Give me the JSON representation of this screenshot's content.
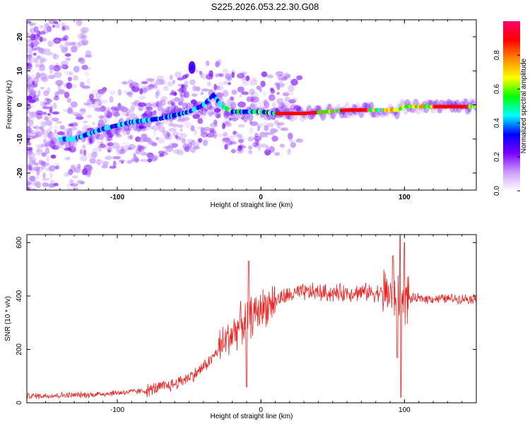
{
  "figure": {
    "title": "S225.2026.053.22.30.G08"
  },
  "chart_data": [
    {
      "type": "heatmap",
      "name": "spectrogram",
      "xlabel": "Height of straight line (km)",
      "ylabel": "Frequency (Hz)",
      "xlim": [
        -163,
        150
      ],
      "ylim": [
        -25,
        25
      ],
      "x_ticks": [
        -100,
        0,
        100
      ],
      "y_ticks": [
        -20,
        -10,
        0,
        10,
        20
      ],
      "x_tick_labels": [
        "-100",
        "0",
        "100"
      ],
      "y_tick_labels": [
        "-20",
        "-10",
        "0",
        "10",
        "20"
      ],
      "colorbar": {
        "label": "Normalized spectral amplitude",
        "range": [
          0,
          1
        ],
        "ticks": [
          0,
          0.2,
          0.4,
          0.6,
          0.8
        ],
        "tick_labels": [
          "0.0",
          "0.2",
          "0.4",
          "0.6",
          "0.8"
        ],
        "colors": [
          "#ffffff",
          "#cc99ff",
          "#7700ff",
          "#0000ff",
          "#00ffff",
          "#00ff00",
          "#ffff00",
          "#ff8800",
          "#ff0000",
          "#ff0066"
        ]
      },
      "ridge": {
        "x": [
          -130,
          -110,
          -90,
          -70,
          -50,
          -40,
          -33,
          -28,
          -20,
          -10,
          0,
          10,
          30,
          45,
          60,
          80,
          95,
          100,
          120,
          150
        ],
        "y": [
          -10,
          -7,
          -5,
          -4,
          -2,
          0,
          3,
          0,
          -2,
          -2,
          -2,
          -2.5,
          -2.5,
          -2,
          -1.5,
          -1.5,
          -1.5,
          -0.5,
          -0.5,
          -0.5
        ]
      },
      "blob": {
        "x": -48,
        "y": 11
      }
    },
    {
      "type": "line",
      "name": "snr",
      "xlabel": "Height of straight line (km)",
      "ylabel": "SNR (10 * v/v)",
      "xlim": [
        -163,
        150
      ],
      "ylim": [
        0,
        630
      ],
      "x_ticks": [
        -100,
        0,
        100
      ],
      "y_ticks": [
        0,
        200,
        400,
        600
      ],
      "x_tick_labels": [
        "-100",
        "0",
        "100"
      ],
      "y_tick_labels": [
        "0",
        "200",
        "400",
        "600"
      ],
      "color": "#ee2222",
      "trend": {
        "x": [
          -163,
          -120,
          -80,
          -60,
          -45,
          -35,
          -25,
          -15,
          -5,
          5,
          15,
          25,
          35,
          50,
          70,
          90,
          98,
          105,
          130,
          150
        ],
        "y": [
          25,
          30,
          45,
          70,
          110,
          160,
          230,
          290,
          330,
          370,
          395,
          410,
          415,
          410,
          415,
          410,
          390,
          390,
          390,
          390
        ]
      },
      "spikes": [
        {
          "x": -8.5,
          "y": 530
        },
        {
          "x": -10,
          "y": 60
        },
        {
          "x": 92,
          "y": 550
        },
        {
          "x": 97,
          "y": 630
        },
        {
          "x": 97.5,
          "y": 20
        },
        {
          "x": 95,
          "y": 170
        },
        {
          "x": 100,
          "y": 600
        }
      ]
    }
  ]
}
